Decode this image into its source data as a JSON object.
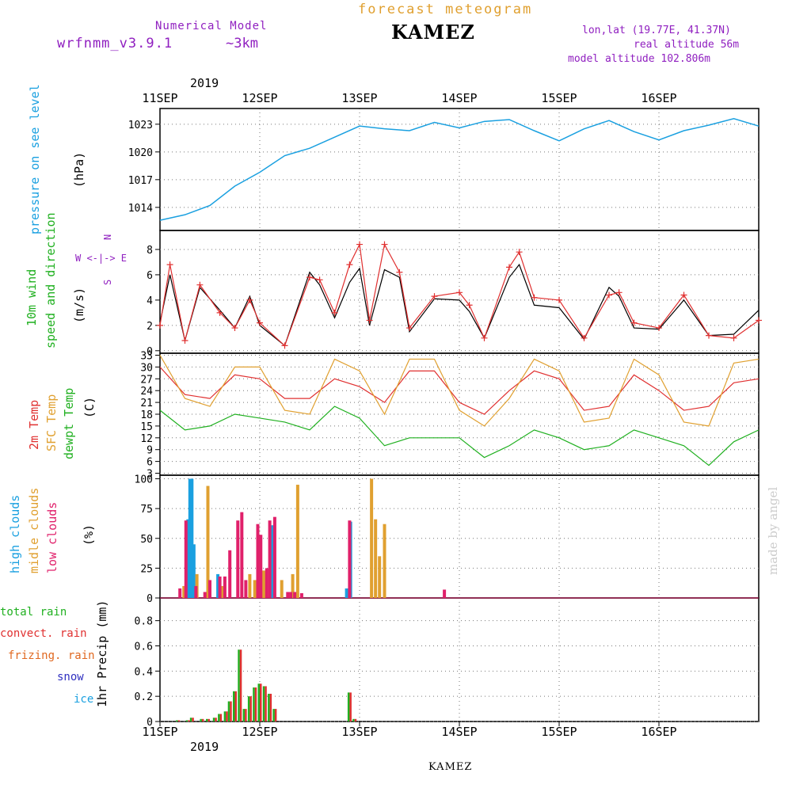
{
  "header": {
    "subtitle": "forecast meteogram",
    "station": "KAMEZ",
    "model_label": "Numerical Model",
    "model_name": "wrfnmm_v3.9.1",
    "resolution": "~3km",
    "lonlat": "lon,lat (19.77E, 41.37N)",
    "real_altitude": "real altitude 56m",
    "model_altitude": "model altitude   102.806m"
  },
  "year_label": "2019",
  "footer_station": "KAMEZ",
  "credit": "made by angel",
  "colors": {
    "pressure": "#1aa0e0",
    "wind_label": "#20b020",
    "wind_model": "#000000",
    "gust": "#e03030",
    "temp2m": "#e03030",
    "sfc_temp": "#e0a030",
    "dewpt": "#20b020",
    "high_clouds": "#1aa0e0",
    "middle_clouds": "#e0a030",
    "low_clouds": "#e0206a",
    "total_rain": "#20b020",
    "convect_rain": "#e03030",
    "frizing_rain": "#e06820",
    "snow": "#3030c0",
    "ice": "#1aa0e0",
    "model_text": "#9020c0",
    "title_text": "#e0a030"
  },
  "chart_data": [
    {
      "type": "line",
      "panel": "pressure",
      "ylabel_name": "pressure on see level",
      "ylabel_unit": "(hPa)",
      "yticks": [
        "1014",
        "1017",
        "1020",
        "1023"
      ],
      "ylim": [
        1011.5,
        1024.7
      ],
      "xlim": [
        0,
        6
      ],
      "dates": [
        "11SEP",
        "12SEP",
        "13SEP",
        "14SEP",
        "15SEP",
        "16SEP"
      ],
      "x": [
        0,
        0.25,
        0.5,
        0.75,
        1.0,
        1.25,
        1.5,
        1.75,
        2.0,
        2.25,
        2.5,
        2.75,
        3.0,
        3.25,
        3.5,
        3.75,
        4.0,
        4.25,
        4.5,
        4.75,
        5.0,
        5.25,
        5.5,
        5.75,
        6.0
      ],
      "values": [
        1012.6,
        1013.2,
        1014.2,
        1016.3,
        1017.8,
        1019.6,
        1020.4,
        1021.6,
        1022.8,
        1022.5,
        1022.3,
        1023.2,
        1022.6,
        1023.3,
        1023.5,
        1022.3,
        1021.2,
        1022.5,
        1023.4,
        1022.2,
        1021.3,
        1022.3,
        1022.9,
        1023.6,
        1022.8
      ]
    },
    {
      "type": "line",
      "panel": "wind",
      "ylabel_name": "10m wind",
      "ylabel_dir": "speed and direction",
      "ylabel_unit": "(m/s)",
      "compass": [
        "N",
        "W <-|-> E",
        "S"
      ],
      "yticks": [
        "0",
        "2",
        "4",
        "6",
        "8"
      ],
      "ylim": [
        -0.2,
        9.5
      ],
      "xlim": [
        0,
        6
      ],
      "x": [
        0,
        0.1,
        0.25,
        0.4,
        0.6,
        0.75,
        0.9,
        1.0,
        1.25,
        1.5,
        1.6,
        1.75,
        1.9,
        2.0,
        2.1,
        2.25,
        2.4,
        2.5,
        2.75,
        3.0,
        3.1,
        3.25,
        3.5,
        3.6,
        3.75,
        4.0,
        4.25,
        4.5,
        4.6,
        4.75,
        5.0,
        5.25,
        5.5,
        5.75,
        6.0
      ],
      "series": [
        {
          "values": [
            2.2,
            6.0,
            0.8,
            5.0,
            3.2,
            1.8,
            4.3,
            2.0,
            0.4,
            6.2,
            5.2,
            2.6,
            5.4,
            6.5,
            2.0,
            6.4,
            5.8,
            1.5,
            4.1,
            4.0,
            3.1,
            1.0,
            5.8,
            6.8,
            3.6,
            3.4,
            0.9,
            5.0,
            4.3,
            1.8,
            1.7,
            4.0,
            1.2,
            1.3,
            3.2
          ]
        },
        {
          "values": [
            2.0,
            6.8,
            0.8,
            5.2,
            3.0,
            1.8,
            4.0,
            2.2,
            0.4,
            5.8,
            5.6,
            3.0,
            6.8,
            8.4,
            2.4,
            8.4,
            6.2,
            1.8,
            4.3,
            4.6,
            3.6,
            1.0,
            6.6,
            7.8,
            4.2,
            4.0,
            1.0,
            4.4,
            4.6,
            2.2,
            1.8,
            4.4,
            1.2,
            1.0,
            2.4
          ]
        }
      ]
    },
    {
      "type": "line",
      "panel": "temperature",
      "ylabel_2m": "2m Temp",
      "ylabel_sfc": "SFC Temp",
      "ylabel_dew": "dewpt Temp",
      "ylabel_unit": "(C)",
      "yticks": [
        "3",
        "6",
        "9",
        "12",
        "15",
        "18",
        "21",
        "24",
        "27",
        "30",
        "33"
      ],
      "ylim": [
        2.5,
        33.5
      ],
      "xlim": [
        0,
        6
      ],
      "x": [
        0,
        0.25,
        0.5,
        0.75,
        1.0,
        1.25,
        1.5,
        1.75,
        2.0,
        2.25,
        2.5,
        2.75,
        3.0,
        3.25,
        3.5,
        3.75,
        4.0,
        4.25,
        4.5,
        4.75,
        5.0,
        5.25,
        5.5,
        5.75,
        6.0
      ],
      "series": [
        {
          "values": [
            30,
            23,
            22,
            28,
            27,
            22,
            22,
            27,
            25,
            21,
            29,
            29,
            21,
            18,
            24,
            29,
            27,
            19,
            20,
            28,
            24,
            19,
            20,
            26,
            27
          ]
        },
        {
          "values": [
            33,
            22,
            20,
            30,
            30,
            19,
            18,
            32,
            29,
            18,
            32,
            32,
            19,
            15,
            22,
            32,
            29,
            16,
            17,
            32,
            28,
            16,
            15,
            31,
            32
          ]
        },
        {
          "values": [
            19,
            14,
            15,
            18,
            17,
            16,
            14,
            20,
            17,
            10,
            12,
            12,
            12,
            7,
            10,
            14,
            12,
            9,
            10,
            14,
            12,
            10,
            5,
            11,
            14
          ]
        }
      ]
    },
    {
      "type": "bar",
      "panel": "clouds",
      "ylabel_high": "high  clouds",
      "ylabel_mid": "midle clouds",
      "ylabel_low": "low   clouds",
      "ylabel_unit": "(%)",
      "yticks": [
        "0",
        "25",
        "50",
        "75",
        "100"
      ],
      "ylim": [
        0,
        103
      ],
      "xlim": [
        0,
        6
      ],
      "series": [
        {
          "x": [
            0.28,
            0.3,
            0.32,
            0.34,
            0.58,
            1.12,
            1.87,
            1.91
          ],
          "values": [
            66,
            100,
            100,
            45,
            20,
            61,
            8,
            64
          ]
        },
        {
          "x": [
            0.24,
            0.37,
            0.48,
            0.62,
            0.9,
            0.95,
            1.04,
            1.22,
            1.33,
            1.38,
            2.12,
            2.16,
            2.2,
            2.25
          ],
          "values": [
            10,
            20,
            94,
            10,
            20,
            15,
            23,
            15,
            20,
            95,
            100,
            66,
            35,
            62
          ]
        },
        {
          "x": [
            0.2,
            0.26,
            0.36,
            0.45,
            0.5,
            0.6,
            0.65,
            0.7,
            0.78,
            0.82,
            0.86,
            0.98,
            1.01,
            1.07,
            1.1,
            1.15,
            1.28,
            1.31,
            1.35,
            1.42,
            1.9,
            2.85
          ],
          "values": [
            8,
            65,
            10,
            5,
            15,
            18,
            18,
            40,
            65,
            72,
            15,
            62,
            53,
            25,
            65,
            68,
            5,
            5,
            5,
            4,
            65,
            7
          ]
        }
      ]
    },
    {
      "type": "bar",
      "panel": "precipitation",
      "ylabel_total": "total    rain",
      "ylabel_convect": "convect. rain",
      "ylabel_frizing": "frizing. rain",
      "ylabel_snow": "snow",
      "ylabel_ice": "ice",
      "ylabel_unit": "1hr Precip (mm)",
      "yticks": [
        "0",
        "0.2",
        "0.4",
        "0.6",
        "0.8"
      ],
      "ylim": [
        0,
        0.98
      ],
      "xlim": [
        0,
        6
      ],
      "series": [
        {
          "x": [
            0.18,
            0.28,
            0.32,
            0.42,
            0.48,
            0.55,
            0.6,
            0.66,
            0.7,
            0.75,
            0.8,
            0.85,
            0.9,
            0.95,
            1.0,
            1.05,
            1.1,
            1.15,
            1.9,
            1.95
          ],
          "values": [
            0.01,
            0.01,
            0.03,
            0.02,
            0.02,
            0.03,
            0.06,
            0.08,
            0.16,
            0.24,
            0.57,
            0.1,
            0.2,
            0.27,
            0.3,
            0.28,
            0.22,
            0.1,
            0.23,
            0.02
          ]
        },
        {
          "x": [
            0.18,
            0.28,
            0.32,
            0.42,
            0.48,
            0.55,
            0.6,
            0.66,
            0.7,
            0.75,
            0.8,
            0.85,
            0.9,
            0.95,
            1.0,
            1.05,
            1.1,
            1.15,
            1.9,
            1.95
          ],
          "values": [
            0.01,
            0.01,
            0.03,
            0.02,
            0.02,
            0.03,
            0.06,
            0.08,
            0.16,
            0.24,
            0.57,
            0.1,
            0.2,
            0.27,
            0.3,
            0.28,
            0.22,
            0.1,
            0.23,
            0.02
          ]
        }
      ]
    }
  ]
}
